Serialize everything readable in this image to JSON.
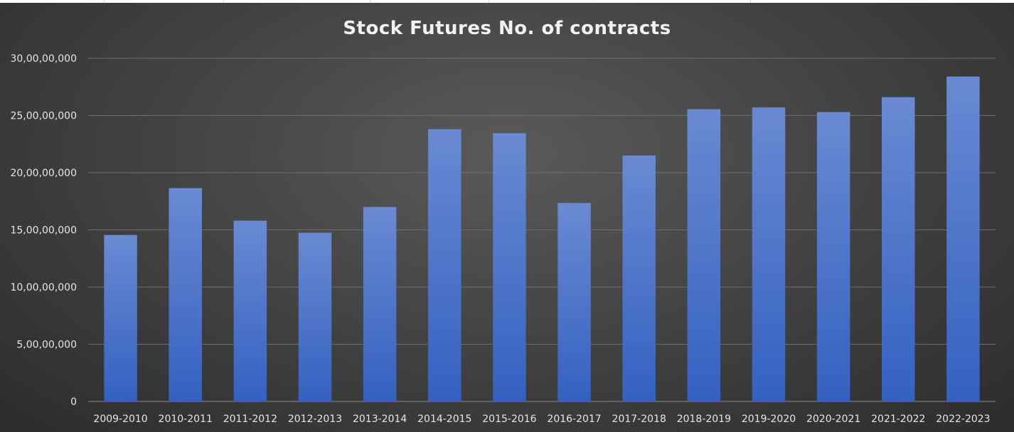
{
  "chart_data": {
    "type": "bar",
    "title": "Stock Futures No. of contracts",
    "xlabel": "",
    "ylabel": "",
    "categories": [
      "2009-2010",
      "2010-2011",
      "2011-2012",
      "2012-2013",
      "2013-2014",
      "2014-2015",
      "2015-2016",
      "2016-2017",
      "2017-2018",
      "2018-2019",
      "2019-2020",
      "2020-2021",
      "2021-2022",
      "2022-2023"
    ],
    "values": [
      145500000,
      186500000,
      158000000,
      147500000,
      170000000,
      238000000,
      234500000,
      173500000,
      215000000,
      255500000,
      257000000,
      253000000,
      266000000,
      284000000
    ],
    "ylim": [
      0,
      300000000
    ],
    "yticks": [
      0,
      50000000,
      100000000,
      150000000,
      200000000,
      250000000,
      300000000
    ],
    "ytick_labels": [
      "0",
      "5,00,00,000",
      "10,00,00,000",
      "15,00,00,000",
      "20,00,00,000",
      "25,00,00,000",
      "30,00,00,000"
    ],
    "grid": true,
    "legend": "none",
    "colors": {
      "bar_top": "#6a8ad2",
      "bar_bottom": "#3461c1",
      "background": "#444444",
      "text": "#e6e6e6"
    }
  }
}
